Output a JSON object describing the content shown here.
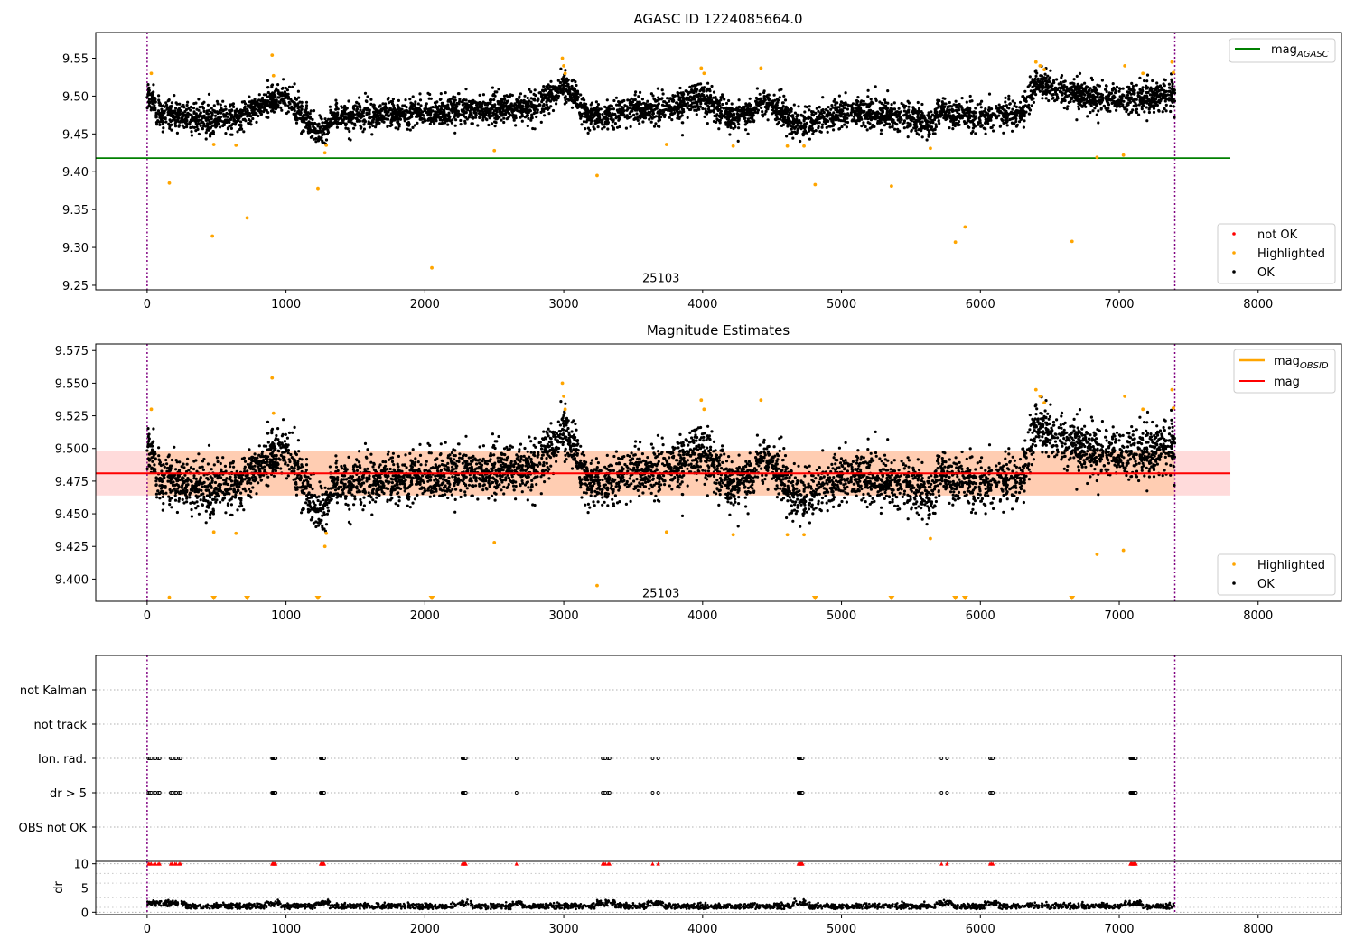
{
  "chart_data": [
    {
      "type": "scatter",
      "title": "AGASC ID 1224085664.0",
      "xlabel": "",
      "ylabel": "",
      "xlim": [
        -370,
        8600
      ],
      "ylim": [
        9.244,
        9.584
      ],
      "x_ticks": [
        0,
        1000,
        2000,
        3000,
        4000,
        5000,
        6000,
        7000,
        8000
      ],
      "x_tick_labels": [
        "0",
        "1000",
        "2000",
        "3000",
        "4000",
        "5000",
        "6000",
        "7000",
        "8000"
      ],
      "y_ticks": [
        9.25,
        9.3,
        9.35,
        9.4,
        9.45,
        9.5,
        9.55
      ],
      "y_tick_labels": [
        "9.25",
        "9.30",
        "9.35",
        "9.40",
        "9.45",
        "9.50",
        "9.55"
      ],
      "vlines": [
        0,
        7400
      ],
      "hline": {
        "name": "mag_AGASC",
        "y": 9.418,
        "x_range": [
          -370,
          7800
        ],
        "color": "#008000"
      },
      "annotation": {
        "text": "25103",
        "x": 3700,
        "y": 9.254
      },
      "legend_upper": [
        "mag",
        "AGASC"
      ],
      "legend_lower": [
        "not OK",
        "Highlighted",
        "OK"
      ],
      "ok_series": {
        "name": "OK",
        "color": "#000000",
        "n_points": 5200,
        "x_range": [
          0,
          7400
        ],
        "baseline": [
          [
            0,
            9.503
          ],
          [
            80,
            9.478
          ],
          [
            300,
            9.472
          ],
          [
            600,
            9.47
          ],
          [
            1000,
            9.5
          ],
          [
            1250,
            9.448
          ],
          [
            1350,
            9.475
          ],
          [
            2000,
            9.478
          ],
          [
            2300,
            9.483
          ],
          [
            2800,
            9.485
          ],
          [
            3000,
            9.515
          ],
          [
            3200,
            9.47
          ],
          [
            3500,
            9.482
          ],
          [
            3800,
            9.485
          ],
          [
            4000,
            9.5
          ],
          [
            4200,
            9.47
          ],
          [
            4450,
            9.492
          ],
          [
            4700,
            9.463
          ],
          [
            5000,
            9.48
          ],
          [
            5500,
            9.472
          ],
          [
            5650,
            9.462
          ],
          [
            5700,
            9.482
          ],
          [
            6000,
            9.47
          ],
          [
            6300,
            9.478
          ],
          [
            6400,
            9.52
          ],
          [
            6600,
            9.505
          ],
          [
            7000,
            9.495
          ],
          [
            7400,
            9.5
          ]
        ]
      },
      "highlighted_series": {
        "name": "Highlighted",
        "color": "#ffa500",
        "points": [
          [
            30,
            9.53
          ],
          [
            160,
            9.385
          ],
          [
            470,
            9.315
          ],
          [
            480,
            9.436
          ],
          [
            640,
            9.435
          ],
          [
            720,
            9.339
          ],
          [
            900,
            9.554
          ],
          [
            910,
            9.527
          ],
          [
            1230,
            9.378
          ],
          [
            1280,
            9.425
          ],
          [
            1290,
            9.435
          ],
          [
            2050,
            9.273
          ],
          [
            2500,
            9.428
          ],
          [
            2990,
            9.55
          ],
          [
            3000,
            9.54
          ],
          [
            3010,
            9.53
          ],
          [
            3240,
            9.395
          ],
          [
            3740,
            9.436
          ],
          [
            3990,
            9.537
          ],
          [
            4010,
            9.53
          ],
          [
            4220,
            9.434
          ],
          [
            4420,
            9.537
          ],
          [
            4610,
            9.434
          ],
          [
            4730,
            9.434
          ],
          [
            4810,
            9.383
          ],
          [
            5360,
            9.381
          ],
          [
            5640,
            9.431
          ],
          [
            5820,
            9.307
          ],
          [
            5890,
            9.327
          ],
          [
            6400,
            9.545
          ],
          [
            6430,
            9.54
          ],
          [
            6460,
            9.535
          ],
          [
            6660,
            9.308
          ],
          [
            6840,
            9.419
          ],
          [
            7030,
            9.422
          ],
          [
            7040,
            9.54
          ],
          [
            7170,
            9.53
          ],
          [
            7380,
            9.545
          ],
          [
            7390,
            9.531
          ]
        ]
      }
    },
    {
      "type": "scatter",
      "title": "Magnitude Estimates",
      "xlabel": "",
      "ylabel": "",
      "xlim": [
        -370,
        8600
      ],
      "ylim": [
        9.383,
        9.58
      ],
      "x_ticks": [
        0,
        1000,
        2000,
        3000,
        4000,
        5000,
        6000,
        7000,
        8000
      ],
      "x_tick_labels": [
        "0",
        "1000",
        "2000",
        "3000",
        "4000",
        "5000",
        "6000",
        "7000",
        "8000"
      ],
      "y_ticks": [
        9.4,
        9.425,
        9.45,
        9.475,
        9.5,
        9.525,
        9.55,
        9.575
      ],
      "y_tick_labels": [
        "9.400",
        "9.425",
        "9.450",
        "9.475",
        "9.500",
        "9.525",
        "9.550",
        "9.575"
      ],
      "vlines": [
        0,
        7400
      ],
      "mag_line": {
        "name": "mag",
        "y": 9.481,
        "x_range": [
          -370,
          7800
        ],
        "color": "#ff0000"
      },
      "band_outer": {
        "y_range": [
          9.464,
          9.498
        ],
        "x_range": [
          -370,
          7800
        ],
        "color": "#ffcccc"
      },
      "band_inner": {
        "y_range": [
          9.464,
          9.498
        ],
        "x_range": [
          0,
          7400
        ],
        "color": "#ffc9a8"
      },
      "annotation": {
        "text": "25103",
        "x": 3700,
        "y": 9.386
      },
      "legend_upper": [
        "mag",
        "OBSID",
        "mag"
      ],
      "legend_lower": [
        "Highlighted",
        "OK"
      ],
      "clipped_markers_x": [
        480,
        720,
        1230,
        2050,
        4810,
        5360,
        5820,
        5890,
        6660
      ],
      "ok_series": {
        "name": "OK",
        "color": "#000000",
        "n_points": 5200,
        "x_range": [
          0,
          7400
        ],
        "baseline": [
          [
            0,
            9.503
          ],
          [
            80,
            9.478
          ],
          [
            300,
            9.472
          ],
          [
            600,
            9.47
          ],
          [
            1000,
            9.5
          ],
          [
            1250,
            9.448
          ],
          [
            1350,
            9.475
          ],
          [
            2000,
            9.478
          ],
          [
            2300,
            9.483
          ],
          [
            2800,
            9.485
          ],
          [
            3000,
            9.515
          ],
          [
            3200,
            9.47
          ],
          [
            3500,
            9.482
          ],
          [
            3800,
            9.485
          ],
          [
            4000,
            9.5
          ],
          [
            4200,
            9.47
          ],
          [
            4450,
            9.492
          ],
          [
            4700,
            9.463
          ],
          [
            5000,
            9.48
          ],
          [
            5500,
            9.472
          ],
          [
            5650,
            9.462
          ],
          [
            5700,
            9.482
          ],
          [
            6000,
            9.47
          ],
          [
            6300,
            9.478
          ],
          [
            6400,
            9.52
          ],
          [
            6600,
            9.505
          ],
          [
            7000,
            9.495
          ],
          [
            7400,
            9.5
          ]
        ]
      },
      "highlighted_series": {
        "name": "Highlighted",
        "color": "#ffa500",
        "points": [
          [
            30,
            9.53
          ],
          [
            160,
            9.386
          ],
          [
            480,
            9.436
          ],
          [
            640,
            9.435
          ],
          [
            900,
            9.554
          ],
          [
            910,
            9.527
          ],
          [
            1280,
            9.425
          ],
          [
            1290,
            9.435
          ],
          [
            2500,
            9.428
          ],
          [
            2990,
            9.55
          ],
          [
            3000,
            9.54
          ],
          [
            3010,
            9.53
          ],
          [
            3240,
            9.395
          ],
          [
            3740,
            9.436
          ],
          [
            3990,
            9.537
          ],
          [
            4010,
            9.53
          ],
          [
            4220,
            9.434
          ],
          [
            4420,
            9.537
          ],
          [
            4610,
            9.434
          ],
          [
            4730,
            9.434
          ],
          [
            5640,
            9.431
          ],
          [
            6400,
            9.545
          ],
          [
            6430,
            9.54
          ],
          [
            6460,
            9.535
          ],
          [
            6840,
            9.419
          ],
          [
            7030,
            9.422
          ],
          [
            7040,
            9.54
          ],
          [
            7170,
            9.53
          ],
          [
            7380,
            9.545
          ],
          [
            7390,
            9.531
          ]
        ]
      }
    },
    {
      "type": "scatter",
      "title": "",
      "xlabel": "",
      "ylabel": "",
      "xlim": [
        -370,
        8600
      ],
      "vlines": [
        0,
        7400
      ],
      "categories": [
        "not Kalman",
        "not track",
        "Ion. rad.",
        "dr > 5",
        "OBS not OK"
      ],
      "flag_clusters_x": [
        [
          10,
          20,
          30,
          50,
          60,
          80,
          90
        ],
        [
          170,
          180,
          200,
          210,
          230,
          240
        ],
        [
          900,
          905,
          910,
          915,
          920,
          925
        ],
        [
          1250,
          1255,
          1260,
          1265,
          1270,
          1275
        ],
        [
          2270,
          2275,
          2280,
          2285,
          2290,
          2295
        ],
        [
          2660
        ],
        [
          3280,
          3290,
          3300,
          3320,
          3330
        ],
        [
          3640,
          3680
        ],
        [
          4690,
          4695,
          4700,
          4705,
          4710,
          4715,
          4720
        ],
        [
          5720,
          5760
        ],
        [
          6070,
          6080,
          6090
        ],
        [
          7080,
          7085,
          7090,
          7095,
          7100,
          7105,
          7110,
          7115,
          7120
        ]
      ],
      "flagged_series": [
        "Ion. rad.",
        "dr > 5"
      ]
    },
    {
      "type": "line",
      "title": "",
      "xlabel": "",
      "ylabel": "dr",
      "xlim": [
        -370,
        8600
      ],
      "ylim": [
        -0.5,
        10.5
      ],
      "y_ticks": [
        0,
        5,
        10
      ],
      "y_tick_labels": [
        "0",
        "5",
        "10"
      ],
      "x_ticks": [
        0,
        1000,
        2000,
        3000,
        4000,
        5000,
        6000,
        7000,
        8000
      ],
      "x_tick_labels": [
        "0",
        "1000",
        "2000",
        "3000",
        "4000",
        "5000",
        "6000",
        "7000",
        "8000"
      ],
      "vlines": [
        0,
        7400
      ],
      "dr_clip_value": 10,
      "dr_clip_color": "#ff0000",
      "dr_baseline_range": [
        0.6,
        2.0
      ]
    }
  ]
}
